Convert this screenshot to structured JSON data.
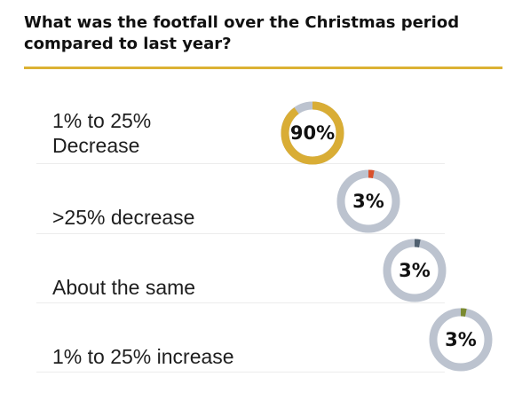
{
  "title": "What was the footfall over the Christmas period compared to last year?",
  "colors": {
    "rule": "#dcb234",
    "track": "#bcc3cf"
  },
  "chart_data": {
    "type": "donut",
    "title": "What was the footfall over the Christmas period compared to last year?",
    "unit": "%",
    "categories": [
      "1% to 25%\nDecrease",
      ">25% decrease",
      "About the same",
      "1% to 25% increase"
    ],
    "values": [
      90,
      3,
      3,
      3
    ],
    "value_labels": [
      "90%",
      "3%",
      "3%",
      "3%"
    ],
    "colors": [
      "#d9ad35",
      "#d9512c",
      "#4f6070",
      "#7a8a30"
    ]
  }
}
